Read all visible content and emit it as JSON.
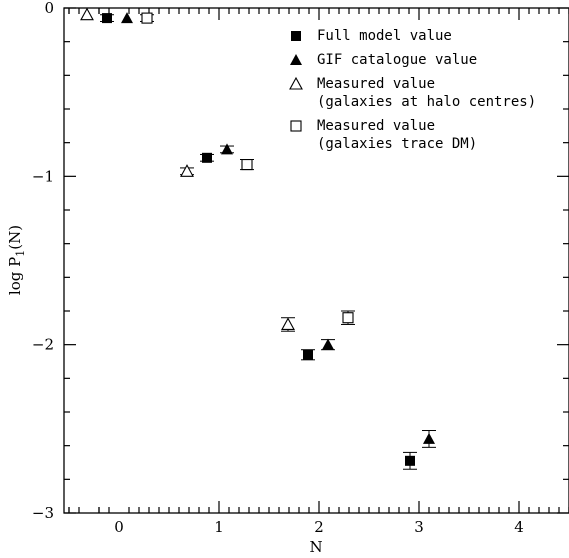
{
  "chart_data": {
    "type": "scatter",
    "title": "",
    "xlabel": "N",
    "ylabel_main": "log P",
    "ylabel_sub": "1",
    "ylabel_tail": "(N)",
    "xlim": [
      -0.55,
      4.5
    ],
    "ylim": [
      -3,
      0
    ],
    "x_ticks": [
      0,
      1,
      2,
      3,
      4
    ],
    "y_ticks": [
      0,
      -1,
      -2,
      -3
    ],
    "x_tick_labels": [
      "0",
      "1",
      "2",
      "3",
      "4"
    ],
    "y_tick_labels": [
      "0",
      "−1",
      "−2",
      "−3"
    ],
    "legend_position": "top-right",
    "grid": false,
    "series": [
      {
        "name": "Full model value",
        "marker": "filled-square",
        "points": [
          {
            "x": -0.12,
            "y": -0.06,
            "err": 0.02
          },
          {
            "x": 0.88,
            "y": -0.89,
            "err": 0.02
          },
          {
            "x": 1.89,
            "y": -2.06,
            "err": 0.03
          },
          {
            "x": 2.91,
            "y": -2.69,
            "err": 0.05
          }
        ]
      },
      {
        "name": "GIF catalogue value",
        "marker": "filled-triangle",
        "points": [
          {
            "x": 0.08,
            "y": -0.06,
            "err": 0.0
          },
          {
            "x": 1.08,
            "y": -0.84,
            "err": 0.02
          },
          {
            "x": 2.09,
            "y": -2.0,
            "err": 0.03
          },
          {
            "x": 3.1,
            "y": -2.56,
            "err": 0.05
          }
        ]
      },
      {
        "name": "Measured value\n(galaxies at halo centres)",
        "marker": "open-triangle",
        "points": [
          {
            "x": -0.32,
            "y": -0.04,
            "err": 0.0
          },
          {
            "x": 0.68,
            "y": -0.97,
            "err": 0.02
          },
          {
            "x": 1.69,
            "y": -1.88,
            "err": 0.04
          }
        ]
      },
      {
        "name": "Measured value\n(galaxies trace DM)",
        "marker": "open-square",
        "points": [
          {
            "x": 0.28,
            "y": -0.06,
            "err": 0.02
          },
          {
            "x": 1.28,
            "y": -0.93,
            "err": 0.03
          },
          {
            "x": 2.29,
            "y": -1.84,
            "err": 0.04
          }
        ]
      }
    ]
  }
}
